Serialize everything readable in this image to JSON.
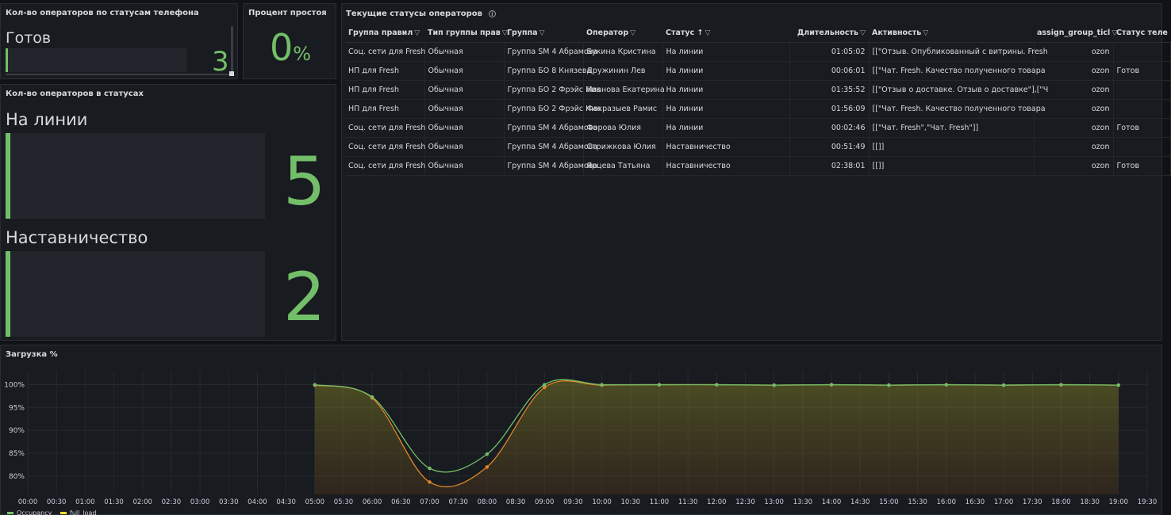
{
  "panel_phone": {
    "title": "Кол-во операторов по статусам телефона",
    "label": "Готов",
    "value": "3",
    "fill": 1.0
  },
  "panel_idle": {
    "title": "Процент простоя",
    "value": "0",
    "unit": "%"
  },
  "panel_status": {
    "title": "Кол-во операторов в статусах",
    "items": [
      {
        "label": "На линии",
        "value": "5"
      },
      {
        "label": "Наставничество",
        "value": "2"
      }
    ]
  },
  "table": {
    "title": "Текущие статусы операторов",
    "columns": [
      "Группа правил",
      "Тип группы прав",
      "Группа",
      "Оператор",
      "Статус",
      "Длительность",
      "Активность",
      "assign_group_ticl",
      "Статус теле"
    ],
    "sort_indicator": "↑",
    "rows": [
      [
        "Соц. сети для Fresh",
        "Обычная",
        "Группа SM 4 Абрамова",
        "Букина Кристина",
        "На линии",
        "01:05:02",
        "[[\"Отзыв. Опубликованный с витрины. Fresh",
        "ozon",
        ""
      ],
      [
        "НП для Fresh",
        "Обычная",
        "Группа БО 8 Князева",
        "Дружинин Лев",
        "На линии",
        "00:06:01",
        "[[\"Чат. Fresh. Качество полученного товара",
        "ozon",
        "Готов"
      ],
      [
        "НП для Fresh",
        "Обычная",
        "Группа БО 2 Фрэйс Ник",
        "Иванова Екатерина",
        "На линии",
        "01:35:52",
        "[[\"Отзыв о доставке. Отзыв о доставке\"],[\"Ч",
        "ozon",
        ""
      ],
      [
        "НП для Fresh",
        "Обычная",
        "Группа БО 2 Фрэйс Ник",
        "Фахразыев Рамис",
        "На линии",
        "01:56:09",
        "[[\"Чат. Fresh. Качество полученного товара",
        "ozon",
        ""
      ],
      [
        "Соц. сети для Fresh",
        "Обычная",
        "Группа SM 4 Абрамова",
        "Форова Юлия",
        "На линии",
        "00:02:46",
        "[[\"Чат. Fresh\",\"Чат. Fresh\"]]",
        "ozon",
        "Готов"
      ],
      [
        "Соц. сети для Fresh",
        "Обычная",
        "Группа SM 4 Абрамова",
        "Стрижкова Юлия",
        "Наставничество",
        "00:51:49",
        "[[]]",
        "ozon",
        ""
      ],
      [
        "Соц. сети для Fresh",
        "Обычная",
        "Группа SM 4 Абрамова",
        "Ярцева Татьяна",
        "Наставничество",
        "02:38:01",
        "[[]]",
        "ozon",
        "Готов"
      ]
    ]
  },
  "chart_data": {
    "type": "line",
    "title": "Загрузка %",
    "x_ticks": [
      "00:00",
      "00:30",
      "01:00",
      "01:30",
      "02:00",
      "02:30",
      "03:00",
      "03:30",
      "04:00",
      "04:30",
      "05:00",
      "05:30",
      "06:00",
      "06:30",
      "07:00",
      "07:30",
      "08:00",
      "08:30",
      "09:00",
      "09:30",
      "10:00",
      "10:30",
      "11:00",
      "11:30",
      "12:00",
      "12:30",
      "13:00",
      "13:30",
      "14:00",
      "14:30",
      "15:00",
      "15:30",
      "16:00",
      "16:30",
      "17:00",
      "17:30",
      "18:00",
      "18:30",
      "19:00",
      "19:30"
    ],
    "y_ticks": [
      80,
      85,
      90,
      95,
      100
    ],
    "ylim": [
      76,
      102
    ],
    "xlim_hours": [
      0,
      19.5
    ],
    "series": [
      {
        "name": "Occupancy",
        "color": "#73bf69",
        "x": [
          5,
          6,
          7,
          8,
          9,
          10,
          11,
          12,
          13,
          14,
          15,
          16,
          17,
          18,
          19
        ],
        "values": [
          100.0,
          97.3,
          81.7,
          84.8,
          100.0,
          100.0,
          100.0,
          100.0,
          99.9,
          100.0,
          99.9,
          100.0,
          99.9,
          100.0,
          99.9
        ]
      },
      {
        "name": "full_load",
        "color": "#fade2a",
        "x": [
          5,
          6,
          7,
          8,
          9,
          10,
          11,
          12,
          13,
          14,
          15,
          16,
          17,
          18,
          19
        ],
        "values": [
          99.9,
          97.1,
          78.7,
          82.0,
          99.4,
          99.9,
          100.0,
          100.0,
          99.9,
          100.0,
          99.9,
          100.0,
          99.9,
          100.0,
          99.9
        ]
      }
    ],
    "legend": "bottom-left"
  }
}
